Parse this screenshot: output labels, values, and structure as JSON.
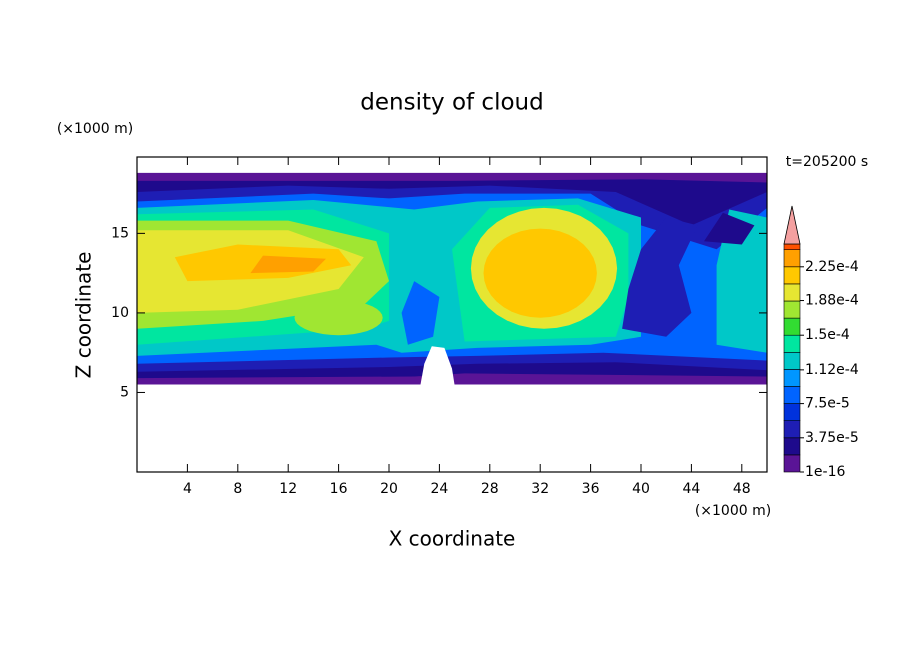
{
  "chart_data": {
    "type": "contour",
    "title": "density of cloud",
    "x_label": "X coordinate",
    "y_label": "Z coordinate",
    "x_unit": "(×1000 m)",
    "y_unit": "(×1000 m)",
    "annotation": "t=205200 s",
    "xlim": [
      0,
      50
    ],
    "ylim": [
      0,
      19.8
    ],
    "xticks": [
      4,
      8,
      12,
      16,
      20,
      24,
      28,
      32,
      36,
      40,
      44,
      48
    ],
    "yticks": [
      5,
      10,
      15
    ],
    "colorbar": {
      "clim": [
        0,
        0.00025
      ],
      "levels": [
        0,
        1.875e-05,
        3.75e-05,
        5.625e-05,
        7.5e-05,
        9.375e-05,
        0.0001125,
        0.00013125,
        0.00015,
        0.00016875,
        0.0001875,
        0.00020625,
        0.000225,
        0.00024375
      ],
      "colors": [
        "#5a1496",
        "#1e0a8c",
        "#1e1eb4",
        "#0032dc",
        "#0064ff",
        "#0096ff",
        "#00c8c8",
        "#00e6a0",
        "#32dc32",
        "#a0e632",
        "#e6e632",
        "#ffc800",
        "#ffa000",
        "#ff5000"
      ],
      "over_color": "#f4a0a0",
      "ticks": [
        1e-16,
        {
          "value": 3.75e-05,
          "label": "3.75e-5"
        },
        {
          "value": 7.5e-05,
          "label": "7.5e-5"
        },
        {
          "value": 0.000112,
          "label": "1.12e-4"
        },
        {
          "value": 0.00015,
          "label": "1.5e-4"
        },
        {
          "value": 0.000188,
          "label": "1.88e-4"
        },
        {
          "value": 0.000225,
          "label": "2.25e-4"
        }
      ]
    }
  }
}
